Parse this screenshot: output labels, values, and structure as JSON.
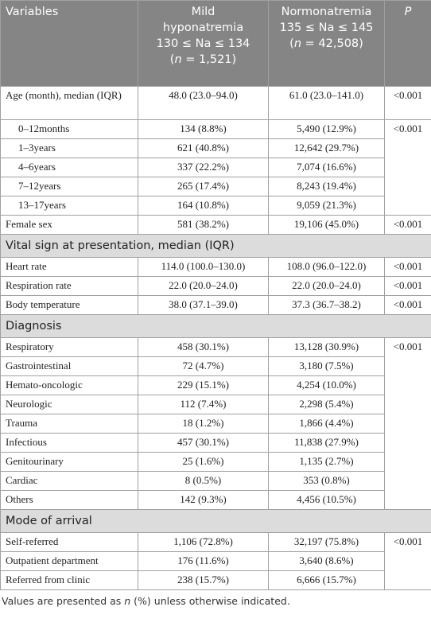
{
  "header": {
    "cells": [
      [
        [
          "Variables"
        ]
      ],
      [
        [
          "Mild"
        ],
        [
          "hyponatremia"
        ],
        [
          "130 ≤ Na ≤ 134"
        ],
        [
          "(",
          "n",
          " = 1,521)"
        ]
      ],
      [
        [
          "Normonatremia"
        ],
        [
          "135 ≤ Na ≤ 145"
        ],
        [
          "(",
          "n",
          " = 42,508)"
        ]
      ],
      [
        [
          "",
          "P",
          ""
        ]
      ]
    ]
  },
  "blocks": [
    {
      "p": "<0.001",
      "rows": [
        [
          "Age (month), median (IQR)",
          "48.0 (23.0–94.0)",
          "61.0 (23.0–141.0)"
        ]
      ]
    },
    {
      "p": "<0.001",
      "indent": true,
      "rows": [
        [
          "0–12months",
          "134 (8.8%)",
          "5,490 (12.9%)"
        ],
        [
          "1–3years",
          "621 (40.8%)",
          "12,642 (29.7%)"
        ],
        [
          "4–6years",
          "337 (22.2%)",
          "7,074 (16.6%)"
        ],
        [
          "7–12years",
          "265 (17.4%)",
          "8,243 (19.4%)"
        ],
        [
          "13–17years",
          "164 (10.8%)",
          "9,059 (21.3%)"
        ]
      ]
    },
    {
      "p": "<0.001",
      "rows": [
        [
          "Female sex",
          "581 (38.2%)",
          "19,106 (45.0%)"
        ]
      ]
    },
    {
      "section": "Vital sign at presentation, median (IQR)"
    },
    {
      "p": "<0.001",
      "rows": [
        [
          "Heart rate",
          "114.0 (100.0–130.0)",
          "108.0 (96.0–122.0)"
        ]
      ]
    },
    {
      "p": "<0.001",
      "rows": [
        [
          "Respiration rate",
          "22.0 (20.0–24.0)",
          "22.0 (20.0–24.0)"
        ]
      ]
    },
    {
      "p": "<0.001",
      "rows": [
        [
          "Body temperature",
          "38.0 (37.1–39.0)",
          "37.3 (36.7–38.2)"
        ]
      ]
    },
    {
      "section": "Diagnosis"
    },
    {
      "p": "<0.001",
      "rows": [
        [
          "Respiratory",
          "458 (30.1%)",
          "13,128 (30.9%)"
        ],
        [
          "Gastrointestinal",
          "72 (4.7%)",
          "3,180 (7.5%)"
        ],
        [
          "Hemato-oncologic",
          "229 (15.1%)",
          "4,254 (10.0%)"
        ],
        [
          "Neurologic",
          "112 (7.4%)",
          "2,298 (5.4%)"
        ],
        [
          "Trauma",
          "18 (1.2%)",
          "1,866 (4.4%)"
        ],
        [
          "Infectious",
          "457 (30.1%)",
          "11,838 (27.9%)"
        ],
        [
          "Genitourinary",
          "25 (1.6%)",
          "1,135 (2.7%)"
        ],
        [
          "Cardiac",
          "8 (0.5%)",
          "353 (0.8%)"
        ],
        [
          "Others",
          "142 (9.3%)",
          "4,456 (10.5%)"
        ]
      ]
    },
    {
      "section": "Mode of arrival"
    },
    {
      "p": "<0.001",
      "rows": [
        [
          "Self-referred",
          "1,106 (72.8%)",
          "32,197 (75.8%)"
        ],
        [
          "Outpatient department",
          "176 (11.6%)",
          "3,640 (8.6%)"
        ],
        [
          "Referred from clinic",
          "238 (15.7%)",
          "6,666 (15.7%)"
        ]
      ]
    }
  ],
  "footnote": [
    "Values are presented as ",
    "n",
    " (%) unless otherwise indicated."
  ]
}
